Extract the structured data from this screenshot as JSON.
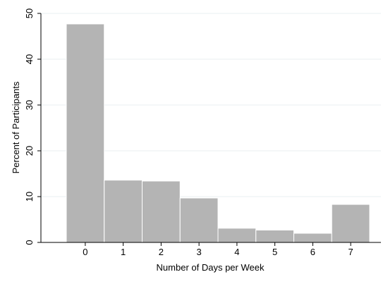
{
  "chart_data": {
    "type": "bar",
    "categories": [
      "0",
      "1",
      "2",
      "3",
      "4",
      "5",
      "6",
      "7"
    ],
    "values": [
      47.7,
      13.6,
      13.4,
      9.7,
      3.1,
      2.7,
      2.0,
      8.3
    ],
    "xlabel": "Number of Days per Week",
    "ylabel": "Percent of Participants",
    "ylim": [
      0,
      50
    ],
    "yticks": [
      0,
      10,
      20,
      30,
      40,
      50
    ],
    "grid": true,
    "bar_color": "#b4b4b4",
    "bar_edge_color": "#ffffff",
    "grid_color": "#e8eff2"
  }
}
